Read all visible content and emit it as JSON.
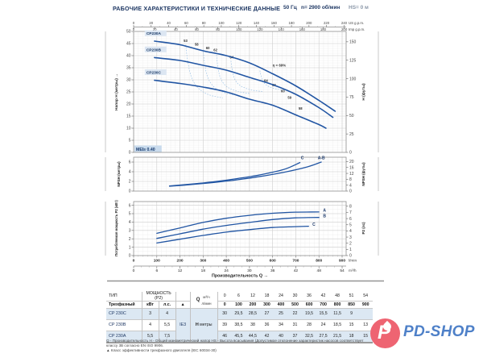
{
  "header": {
    "title": "РАБОЧИЕ ХАРАКТЕРИСТИКИ И ТЕХНИЧЕСКИЕ ДАННЫЕ",
    "frequency": "50 Гц",
    "speed": "n= 2900 об/мин",
    "suction": "HS= 0 м"
  },
  "chart_data": [
    {
      "type": "line",
      "name": "head-flow-curves",
      "ylabel_left": "Напор H (метры) →",
      "ylabel_right": "H (футы)",
      "ylim": [
        0,
        50
      ],
      "yticks": [
        0,
        5,
        10,
        15,
        20,
        25,
        30,
        35,
        40,
        45,
        50
      ],
      "yticks_right_ft": [
        0,
        25,
        50,
        75,
        100,
        125,
        150
      ],
      "xlim_lmin": [
        0,
        917
      ],
      "grid": "on",
      "top_axis": {
        "us_gpm": {
          "unit": "US g.p.m.",
          "ticks": [
            0,
            20,
            40,
            60,
            80,
            100,
            120,
            140,
            160,
            180,
            200,
            220,
            240
          ]
        },
        "imp_gpm": {
          "unit": "Imp g.p.m.",
          "ticks": [
            0,
            20,
            40,
            60,
            80,
            100,
            120,
            140,
            160,
            180,
            200
          ]
        }
      },
      "mei_label": "MEI≥ 0.40",
      "bep_label": "η = 69%",
      "bep_label_pos": {
        "q": 600,
        "h": 35.5
      },
      "series": [
        {
          "name": "CP230A",
          "label_pos": {
            "q": 55,
            "h": 48.6
          },
          "points": [
            [
              90,
              46
            ],
            [
              200,
              44.5
            ],
            [
              300,
              42
            ],
            [
              400,
              40
            ],
            [
              500,
              37
            ],
            [
              600,
              32.5
            ],
            [
              700,
              27.5
            ],
            [
              800,
              21.5
            ],
            [
              870,
              17
            ]
          ]
        },
        {
          "name": "CP230B",
          "label_pos": {
            "q": 55,
            "h": 41.9
          },
          "points": [
            [
              90,
              39.2
            ],
            [
              200,
              38
            ],
            [
              300,
              36
            ],
            [
              400,
              34
            ],
            [
              500,
              31
            ],
            [
              600,
              28
            ],
            [
              700,
              24
            ],
            [
              800,
              18.5
            ],
            [
              860,
              14.5
            ]
          ]
        },
        {
          "name": "CP230C",
          "label_pos": {
            "q": 55,
            "h": 32.5
          },
          "points": [
            [
              90,
              29.8
            ],
            [
              200,
              28.5
            ],
            [
              300,
              27
            ],
            [
              400,
              25
            ],
            [
              500,
              22
            ],
            [
              600,
              19.5
            ],
            [
              700,
              15.5
            ],
            [
              800,
              11.5
            ],
            [
              830,
              10
            ]
          ]
        }
      ],
      "efficiency_labels": [
        {
          "q": 216,
          "h": 45.6,
          "v": "53"
        },
        {
          "q": 264,
          "h": 44.2,
          "v": "58"
        },
        {
          "q": 312,
          "h": 42.7,
          "v": "60"
        },
        {
          "q": 345,
          "h": 41.9,
          "v": "62"
        },
        {
          "q": 415,
          "h": 38.8,
          "v": "64"
        },
        {
          "q": 563,
          "h": 29.2,
          "v": "64"
        },
        {
          "q": 598,
          "h": 27.4,
          "v": "63"
        },
        {
          "q": 636,
          "h": 24.8,
          "v": "60"
        },
        {
          "q": 665,
          "h": 22.2,
          "v": "59"
        },
        {
          "q": 712,
          "h": 17.6,
          "v": "58"
        }
      ],
      "efficiency_curves": [
        [
          [
            225,
            44.5
          ],
          [
            233,
            38
          ],
          [
            248,
            31.5
          ],
          [
            275,
            27
          ],
          [
            320,
            24
          ],
          [
            385,
            22.5
          ]
        ],
        [
          [
            300,
            42.5
          ],
          [
            307,
            36.5
          ],
          [
            320,
            31
          ],
          [
            348,
            27
          ],
          [
            398,
            24.5
          ],
          [
            455,
            23.5
          ]
        ],
        [
          [
            358,
            40.3
          ],
          [
            364,
            35
          ],
          [
            376,
            30.5
          ],
          [
            402,
            27.2
          ],
          [
            450,
            25.2
          ],
          [
            505,
            24.3
          ]
        ],
        [
          [
            420,
            37.8
          ],
          [
            427,
            33.5
          ],
          [
            438,
            30
          ],
          [
            462,
            27.5
          ],
          [
            508,
            25.8
          ],
          [
            555,
            25.2
          ]
        ],
        [
          [
            545,
            33.8
          ],
          [
            552,
            31
          ],
          [
            563,
            28.8
          ],
          [
            588,
            27
          ],
          [
            628,
            26
          ],
          [
            662,
            25.7
          ]
        ]
      ]
    },
    {
      "type": "line",
      "name": "npsh-curves",
      "ylabel_left": "NPSH (метры)",
      "ylabel_right": "NPSH (футы)",
      "ylim": [
        0,
        7
      ],
      "yticks": [
        0,
        2,
        4,
        6
      ],
      "yticks_right_ft": [
        0,
        4,
        8,
        12,
        16,
        20
      ],
      "grid": "on",
      "series": [
        {
          "name": "C",
          "label_pos": {
            "q": 722,
            "h": 6.55
          },
          "points": [
            [
              155,
              1.05
            ],
            [
              250,
              1.45
            ],
            [
              350,
              1.95
            ],
            [
              450,
              2.6
            ],
            [
              550,
              3.4
            ],
            [
              650,
              4.5
            ],
            [
              718,
              5.9
            ]
          ]
        },
        {
          "name": "A-B",
          "label_pos": {
            "q": 795,
            "h": 6.55
          },
          "points": [
            [
              155,
              1.0
            ],
            [
              250,
              1.35
            ],
            [
              350,
              1.8
            ],
            [
              450,
              2.35
            ],
            [
              550,
              3.05
            ],
            [
              650,
              3.9
            ],
            [
              750,
              5.0
            ],
            [
              810,
              6.0
            ]
          ]
        }
      ]
    },
    {
      "type": "line",
      "name": "power-p2-curves",
      "ylabel_left": "Потребляемая мощность P2 (кВт)",
      "ylabel_right": "P2 (лс)",
      "ylim": [
        0,
        6.44
      ],
      "yticks": [
        0,
        1,
        2,
        3,
        4,
        5,
        6
      ],
      "yticks_right_hp": [
        0,
        1,
        2,
        3,
        4,
        5,
        6,
        7,
        8
      ],
      "grid": "on",
      "series": [
        {
          "name": "A",
          "label_pos": {
            "q": 818,
            "h": 5.22
          },
          "points": [
            [
              100,
              2.65
            ],
            [
              200,
              3.3
            ],
            [
              300,
              3.95
            ],
            [
              400,
              4.45
            ],
            [
              500,
              4.8
            ],
            [
              600,
              5.05
            ],
            [
              700,
              5.18
            ],
            [
              800,
              5.2
            ]
          ]
        },
        {
          "name": "B",
          "label_pos": {
            "q": 818,
            "h": 4.57
          },
          "points": [
            [
              100,
              2.05
            ],
            [
              200,
              2.6
            ],
            [
              300,
              3.15
            ],
            [
              400,
              3.6
            ],
            [
              500,
              3.95
            ],
            [
              600,
              4.3
            ],
            [
              700,
              4.5
            ],
            [
              800,
              4.55
            ]
          ]
        },
        {
          "name": "C",
          "label_pos": {
            "q": 772,
            "h": 3.57
          },
          "points": [
            [
              100,
              1.5
            ],
            [
              200,
              1.95
            ],
            [
              300,
              2.4
            ],
            [
              400,
              2.8
            ],
            [
              500,
              3.1
            ],
            [
              600,
              3.35
            ],
            [
              700,
              3.45
            ],
            [
              755,
              3.5
            ]
          ]
        }
      ],
      "bottom_axis": {
        "lmin": {
          "unit": "l/min",
          "ticks": [
            0,
            100,
            200,
            300,
            400,
            500,
            600,
            700,
            800,
            900
          ]
        },
        "m3h": {
          "unit": "m³/h",
          "ticks": [
            0,
            6,
            12,
            18,
            24,
            30,
            36,
            42,
            48,
            54
          ]
        },
        "xlabel": "Производительность Q →"
      }
    }
  ],
  "table": {
    "col1_header": "ТИП",
    "col1_sub": "Трехфазный",
    "power_header": "МОЩНОСТЬ (P2)",
    "power_units": [
      "кВт",
      "л.с."
    ],
    "efficiency_mark": "▲",
    "efficiency_class": "IE3",
    "q_label": "Q",
    "q_units": [
      "м³/ч",
      "л/мин"
    ],
    "h_label": "H",
    "h_unit": "метры",
    "q_m3h": [
      "0",
      "6",
      "12",
      "18",
      "24",
      "30",
      "36",
      "42",
      "48",
      "51",
      "54"
    ],
    "q_lmin": [
      "0",
      "100",
      "200",
      "300",
      "400",
      "500",
      "600",
      "700",
      "800",
      "850",
      "900"
    ],
    "rows": [
      {
        "model": "CP 230C",
        "kw": "3",
        "hp": "4",
        "h": [
          "30",
          "29,5",
          "28,5",
          "27",
          "25",
          "22",
          "19,5",
          "15,5",
          "11,5",
          "9",
          ""
        ]
      },
      {
        "model": "CP 230B",
        "kw": "4",
        "hp": "5,5",
        "h": [
          "39",
          "38,5",
          "38",
          "36",
          "34",
          "31",
          "28",
          "24",
          "18,5",
          "15",
          "13"
        ]
      },
      {
        "model": "CP 230A",
        "kw": "5,5",
        "hp": "7,5",
        "h": [
          "46",
          "45,5",
          "44,5",
          "42",
          "40",
          "37",
          "32,5",
          "27,5",
          "21,5",
          "18",
          "15"
        ]
      }
    ]
  },
  "footnotes": {
    "line1": "Q - Производительность   H - Общий манометрический напор   HS - Высота всасывания (Допустимое отклонение характеристик насосов соответствует классу 3B согласно EN ISO 9906.",
    "line2": "▲   Класс эффективности трехфазного двигателя (IEC 60034-30)"
  },
  "logo": {
    "text": "PD-SHOP"
  }
}
